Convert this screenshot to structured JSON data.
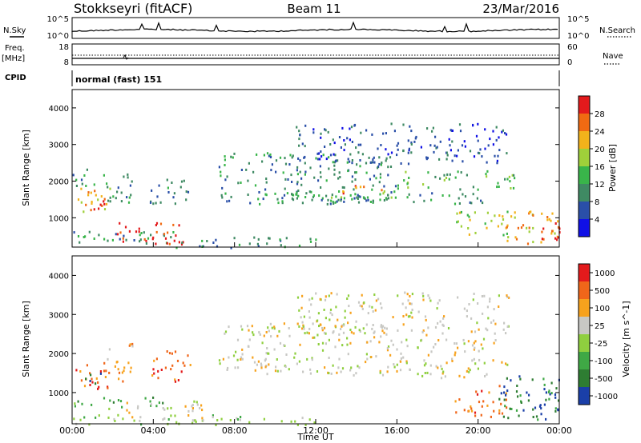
{
  "header": {
    "station": "Stokkseyri (fitACF)",
    "beam": "Beam 11",
    "date": "23/Mar/2016",
    "mode": "normal (fast) 151"
  },
  "labels": {
    "nsky": "N.Sky",
    "nsearch": "N.Search",
    "freq": "Freq.",
    "mhz": "[MHz]",
    "nave": "Nave",
    "cpid": "CPID",
    "noise_top": "10^5",
    "noise_bottom": "10^0"
  },
  "colors": {
    "power": [
      "#1010e6",
      "#2a4fa8",
      "#3f8a63",
      "#39b54a",
      "#9fd03a",
      "#f2b21b",
      "#f06a12",
      "#e31a1c"
    ],
    "velocity": [
      "#1a3fa8",
      "#2e7d32",
      "#3fa845",
      "#8fcf3f",
      "#c8c8c4",
      "#f7a21d",
      "#f0661a",
      "#e31a1c"
    ],
    "ground_scatter": "#c8c8c4"
  },
  "chart_data": [
    {
      "type": "line",
      "name": "noise panel",
      "series": [
        {
          "name": "N.Sky"
        },
        {
          "name": "N.Search"
        }
      ],
      "y_left_ticks": [
        "10^5",
        "10^0"
      ],
      "y_right_ticks": [
        "10^5",
        "10^0"
      ]
    },
    {
      "type": "line",
      "name": "frequency / nave panel",
      "series": [
        {
          "name": "Freq."
        },
        {
          "name": "Nave"
        }
      ],
      "y_left_ticks": [
        "18",
        "8"
      ],
      "y_right_ticks": [
        "60",
        "0"
      ]
    },
    {
      "type": "heatmap",
      "x": {
        "label": "Time UT",
        "range": [
          0,
          24
        ],
        "ticks": [
          "00:00",
          "04:00",
          "08:00",
          "12:00",
          "16:00",
          "20:00",
          "00:00"
        ]
      },
      "y": {
        "label": "Slant Range [km]",
        "range": [
          200,
          4500
        ],
        "ticks": [
          1000,
          2000,
          3000,
          4000
        ]
      },
      "colorbar": {
        "label": "Power [dB]",
        "ticks": [
          "28",
          "24",
          "20",
          "16",
          "12",
          "8",
          "4"
        ],
        "range": [
          0,
          32
        ]
      },
      "scatter_regions": [
        {
          "t": [
            0,
            1.9
          ],
          "r": [
            1150,
            1850
          ],
          "level": 5
        },
        {
          "t": [
            0.3,
            1.6
          ],
          "r": [
            1250,
            1550
          ],
          "level": 7
        },
        {
          "t": [
            0,
            1.2
          ],
          "r": [
            1900,
            2400
          ],
          "level": 2
        },
        {
          "t": [
            1.5,
            3.0
          ],
          "r": [
            1300,
            2300
          ],
          "level": 2
        },
        {
          "t": [
            0,
            5.0
          ],
          "r": [
            250,
            650
          ],
          "level": 2
        },
        {
          "t": [
            2.2,
            5.8
          ],
          "r": [
            300,
            900
          ],
          "level": 7
        },
        {
          "t": [
            3.8,
            5.9
          ],
          "r": [
            1400,
            2100
          ],
          "level": 2
        },
        {
          "t": [
            5.0,
            12.0
          ],
          "r": [
            200,
            500
          ],
          "level": 2
        },
        {
          "t": [
            7.2,
            16.0
          ],
          "r": [
            1400,
            2800
          ],
          "level": 2
        },
        {
          "t": [
            9.0,
            16.0
          ],
          "r": [
            1500,
            1750
          ],
          "level": 3
        },
        {
          "t": [
            13.0,
            16.0
          ],
          "r": [
            1700,
            1900
          ],
          "level": 6
        },
        {
          "t": [
            11.0,
            21.5
          ],
          "r": [
            2500,
            3600
          ],
          "level": 1
        },
        {
          "t": [
            16.0,
            21.8
          ],
          "r": [
            1800,
            2300
          ],
          "level": 3
        },
        {
          "t": [
            12.0,
            20.5
          ],
          "r": [
            1400,
            1700
          ],
          "level": 2
        },
        {
          "t": [
            18.8,
            21.5
          ],
          "r": [
            500,
            1200
          ],
          "level": 4
        },
        {
          "t": [
            21.0,
            24.0
          ],
          "r": [
            300,
            1200
          ],
          "level": 5
        },
        {
          "t": [
            23.0,
            24.0
          ],
          "r": [
            400,
            1000
          ],
          "level": 7
        }
      ]
    },
    {
      "type": "heatmap",
      "x": {
        "label": "Time UT",
        "range": [
          0,
          24
        ],
        "ticks": [
          "00:00",
          "04:00",
          "08:00",
          "12:00",
          "16:00",
          "20:00",
          "00:00"
        ]
      },
      "y": {
        "label": "Slant Range [km]",
        "range": [
          200,
          4500
        ],
        "ticks": [
          1000,
          2000,
          3000,
          4000
        ]
      },
      "colorbar": {
        "label": "Velocity [m s^-1]",
        "ticks": [
          "1000",
          "500",
          "100",
          "25",
          "-25",
          "-100",
          "-500",
          "-1000"
        ],
        "range": [
          -1200,
          1200
        ]
      },
      "scatter_regions": [
        {
          "t": [
            0,
            1.9
          ],
          "r": [
            1100,
            1850
          ],
          "level": 6
        },
        {
          "t": [
            0.2,
            1.4
          ],
          "r": [
            1250,
            1550
          ],
          "level": 0
        },
        {
          "t": [
            1.5,
            3.0
          ],
          "r": [
            1300,
            2300
          ],
          "level": 5
        },
        {
          "t": [
            0,
            5.0
          ],
          "r": [
            600,
            900
          ],
          "level": 2
        },
        {
          "t": [
            2.2,
            6.5
          ],
          "r": [
            300,
            800
          ],
          "level": 4
        },
        {
          "t": [
            0,
            12.0
          ],
          "r": [
            200,
            450
          ],
          "level": 3
        },
        {
          "t": [
            3.8,
            5.9
          ],
          "r": [
            1300,
            2100
          ],
          "level": 6
        },
        {
          "t": [
            7.2,
            16.0
          ],
          "r": [
            1500,
            2800
          ],
          "level": 4
        },
        {
          "t": [
            11.0,
            21.5
          ],
          "r": [
            2500,
            3600
          ],
          "level": 4
        },
        {
          "t": [
            16.0,
            21.8
          ],
          "r": [
            1700,
            2400
          ],
          "level": 4
        },
        {
          "t": [
            12.0,
            20.5
          ],
          "r": [
            1400,
            1700
          ],
          "level": 4
        },
        {
          "t": [
            18.8,
            21.5
          ],
          "r": [
            400,
            1200
          ],
          "level": 6
        },
        {
          "t": [
            21.0,
            24.0
          ],
          "r": [
            300,
            1500
          ],
          "level": 1
        },
        {
          "t": [
            23.0,
            24.0
          ],
          "r": [
            400,
            1000
          ],
          "level": 0
        }
      ]
    }
  ]
}
